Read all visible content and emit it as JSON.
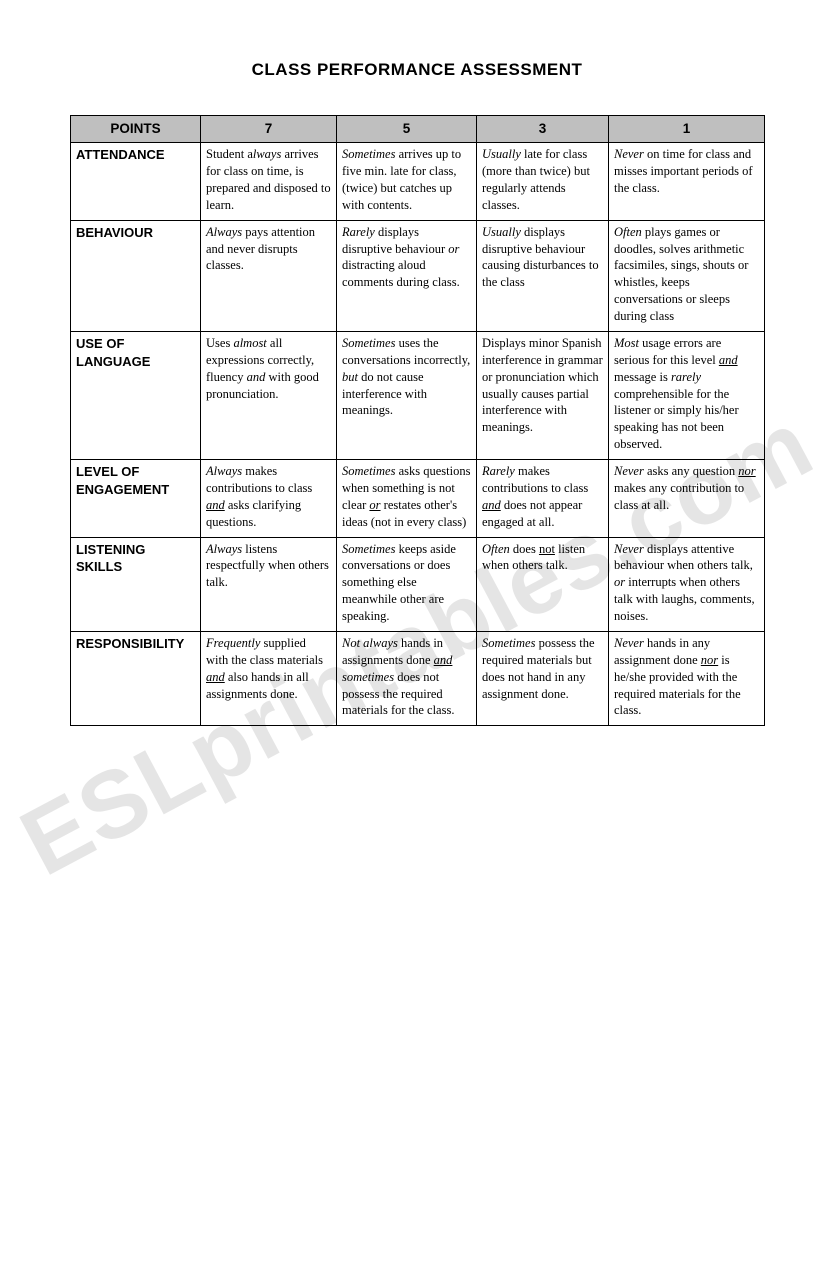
{
  "title": "CLASS PERFORMANCE ASSESSMENT",
  "watermark": "ESLprintables.com",
  "header": {
    "points": "POINTS",
    "c7": "7",
    "c5": "5",
    "c3": "3",
    "c1": "1"
  },
  "rows": {
    "attendance": {
      "label": "ATTENDANCE",
      "c7": [
        "Student a",
        "lways",
        " arrives for class on time, is prepared and disposed to learn."
      ],
      "c5": [
        "",
        "Sometimes",
        " arrives up to five min. late for class, (twice) but catches up with contents."
      ],
      "c3": [
        "",
        "Usually",
        " late for class (more than twice) but regularly attends classes."
      ],
      "c1": [
        "",
        "Never",
        " on time for class and misses important periods of the class."
      ]
    },
    "behaviour": {
      "label": "BEHAVIOUR",
      "c7": [
        "",
        "Always",
        " pays attention and never disrupts classes."
      ],
      "c5": [
        "",
        "Rarely",
        " displays disruptive behaviour ",
        "or",
        " distracting aloud comments during class."
      ],
      "c3": [
        "",
        "Usually",
        " displays disruptive behaviour  causing disturbances to the class"
      ],
      "c1": [
        "",
        "Often",
        " plays games or doodles, solves arithmetic facsimiles, sings, shouts or whistles, keeps conversations or sleeps during class"
      ]
    },
    "language": {
      "label": "USE OF LANGUAGE",
      "c7": [
        "Uses ",
        "almost",
        " all expressions correctly, fluency ",
        "and",
        " with good pronunciation."
      ],
      "c5": [
        "",
        "Sometimes",
        " uses the conversations incorrectly, ",
        "but",
        " do not cause interference with meanings."
      ],
      "c3": [
        "Displays minor Spanish interference in grammar or pronunciation which usually causes partial interference with meanings."
      ],
      "c1": [
        "",
        "Most",
        " usage errors are serious for this level ",
        "and",
        " message is ",
        "rarely",
        " comprehensible for the listener or simply his/her speaking has not been observed."
      ]
    },
    "engagement": {
      "label": "LEVEL OF ENGAGEMENT",
      "c7": [
        "",
        "Always",
        " makes contributions to class ",
        "and",
        " asks clarifying questions."
      ],
      "c5": [
        "",
        "Sometimes",
        " asks questions when something is not clear ",
        "or",
        " restates other's ideas (not in every class)"
      ],
      "c3": [
        "",
        "Rarely",
        " makes contributions to class ",
        "and",
        " does not appear engaged at all."
      ],
      "c1": [
        "",
        "Never",
        " asks any question ",
        "nor",
        " makes any contribution to class at all."
      ]
    },
    "listening": {
      "label": "LISTENING SKILLS",
      "c7": [
        "",
        "Always",
        " listens respectfully when others talk."
      ],
      "c5": [
        "",
        "Sometimes",
        " keeps aside conversations or does something else meanwhile other are speaking."
      ],
      "c3": [
        "",
        "Often",
        " does ",
        "not",
        " listen when others talk."
      ],
      "c1": [
        "",
        "Never",
        " displays attentive behaviour when others talk, ",
        "or",
        " interrupts when others talk with laughs, comments, noises."
      ]
    },
    "responsibility": {
      "label": "RESPONSIBILITY",
      "c7": [
        "",
        "Frequently",
        " supplied with the class materials ",
        "and",
        " also hands in all assignments done."
      ],
      "c5": [
        "",
        "Not always",
        " hands in assignments done ",
        "and",
        " ",
        "sometimes",
        " does not possess the required materials for the class."
      ],
      "c3": [
        "",
        "Sometimes",
        " possess the required materials but does not hand in any assignment done."
      ],
      "c1": [
        "",
        "Never",
        " hands in any assignment done ",
        "nor",
        " is he/she provided with the required materials for the class."
      ]
    }
  },
  "styleMap": {
    "attendance": {
      "c7": [
        "",
        "i",
        ""
      ],
      "c5": [
        "",
        "i",
        ""
      ],
      "c3": [
        "",
        "i",
        ""
      ],
      "c1": [
        "",
        "i",
        ""
      ]
    },
    "behaviour": {
      "c7": [
        "",
        "i",
        ""
      ],
      "c5": [
        "",
        "i",
        "",
        "i",
        ""
      ],
      "c3": [
        "",
        "i",
        ""
      ],
      "c1": [
        "",
        "i",
        ""
      ]
    },
    "language": {
      "c7": [
        "",
        "i",
        "",
        "i",
        ""
      ],
      "c5": [
        "",
        "i",
        "",
        "i",
        ""
      ],
      "c3": [
        ""
      ],
      "c1": [
        "",
        "i",
        "",
        "iu",
        "",
        "i",
        ""
      ]
    },
    "engagement": {
      "c7": [
        "",
        "i",
        "",
        "iu",
        ""
      ],
      "c5": [
        "",
        "i",
        "",
        "iu",
        ""
      ],
      "c3": [
        "",
        "i",
        "",
        "iu",
        ""
      ],
      "c1": [
        "",
        "i",
        "",
        "iu",
        ""
      ]
    },
    "listening": {
      "c7": [
        "",
        "i",
        ""
      ],
      "c5": [
        "",
        "i",
        ""
      ],
      "c3": [
        "",
        "i",
        "",
        "u",
        ""
      ],
      "c1": [
        "",
        "i",
        "",
        "i",
        ""
      ]
    },
    "responsibility": {
      "c7": [
        "",
        "i",
        "",
        "iu",
        ""
      ],
      "c5": [
        "",
        "i",
        "",
        "iu",
        "",
        "i",
        ""
      ],
      "c3": [
        "",
        "i",
        ""
      ],
      "c1": [
        "",
        "i",
        "",
        "iu",
        ""
      ]
    }
  }
}
